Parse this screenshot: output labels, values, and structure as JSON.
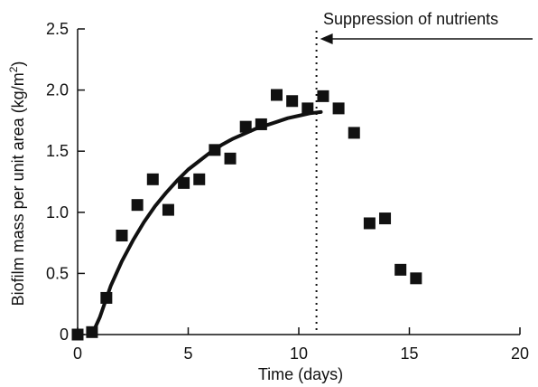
{
  "chart_data": {
    "type": "scatter",
    "xlabel": "Time (days)",
    "ylabel_main": "Biofilm mass per unit area (kg/m",
    "ylabel_sup": "2",
    "ylabel_close": ")",
    "xlim": [
      0,
      20
    ],
    "ylim": [
      0,
      2.5
    ],
    "x_ticks": [
      0,
      5,
      10,
      15,
      20
    ],
    "x_tick_labels": [
      "0",
      "5",
      "10",
      "15",
      "20"
    ],
    "y_ticks": [
      0,
      0.5,
      1.0,
      1.5,
      2.0,
      2.5
    ],
    "y_tick_labels": [
      "0",
      "0.5",
      "1.0",
      "1.5",
      "2.0",
      "2.5"
    ],
    "grid": false,
    "series": [
      {
        "kind": "points",
        "marker": "square",
        "color": "#111111",
        "points": [
          [
            0.0,
            0.0
          ],
          [
            0.65,
            0.02
          ],
          [
            1.3,
            0.3
          ],
          [
            2.0,
            0.81
          ],
          [
            2.7,
            1.06
          ],
          [
            3.4,
            1.27
          ],
          [
            4.1,
            1.02
          ],
          [
            4.8,
            1.24
          ],
          [
            5.5,
            1.27
          ],
          [
            6.2,
            1.51
          ],
          [
            6.9,
            1.44
          ],
          [
            7.6,
            1.7
          ],
          [
            8.3,
            1.72
          ],
          [
            9.0,
            1.96
          ],
          [
            9.7,
            1.91
          ],
          [
            10.4,
            1.85
          ],
          [
            11.1,
            1.95
          ],
          [
            11.8,
            1.85
          ],
          [
            12.5,
            1.65
          ],
          [
            13.2,
            0.91
          ],
          [
            13.9,
            0.95
          ],
          [
            14.6,
            0.53
          ],
          [
            15.3,
            0.46
          ]
        ]
      },
      {
        "kind": "fit-curve",
        "color": "#111111",
        "points": [
          [
            0.65,
            0.0
          ],
          [
            1.0,
            0.14
          ],
          [
            1.5,
            0.4
          ],
          [
            2.0,
            0.6
          ],
          [
            2.5,
            0.77
          ],
          [
            3.0,
            0.92
          ],
          [
            3.5,
            1.05
          ],
          [
            4.0,
            1.16
          ],
          [
            4.5,
            1.26
          ],
          [
            5.0,
            1.35
          ],
          [
            5.5,
            1.42
          ],
          [
            6.0,
            1.49
          ],
          [
            6.5,
            1.55
          ],
          [
            7.0,
            1.6
          ],
          [
            7.5,
            1.64
          ],
          [
            8.0,
            1.68
          ],
          [
            8.5,
            1.71
          ],
          [
            9.0,
            1.74
          ],
          [
            9.5,
            1.77
          ],
          [
            10.0,
            1.79
          ],
          [
            10.5,
            1.81
          ],
          [
            11.0,
            1.82
          ]
        ]
      }
    ],
    "annotations": [
      {
        "text": "Suppression of nutrients",
        "x_at": 10.8,
        "style": "dotted-vertical-line-with-arrow"
      }
    ]
  }
}
